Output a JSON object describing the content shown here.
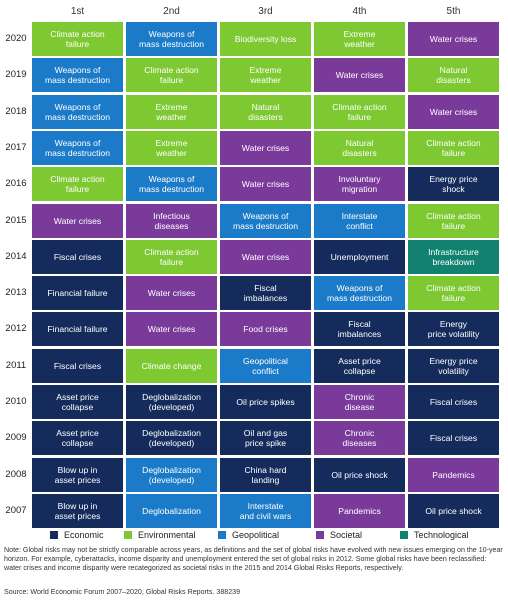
{
  "chart_data": {
    "type": "table",
    "columns": [
      "1st",
      "2nd",
      "3rd",
      "4th",
      "5th"
    ],
    "colors": {
      "Economic": "#152b5c",
      "Environmental": "#7ec832",
      "Geopolitical": "#1c7bc8",
      "Societal": "#7a3a9a",
      "Technological": "#11826f"
    },
    "rows": [
      {
        "year": "2020",
        "cells": [
          {
            "label": "Climate action\nfailure",
            "category": "Environmental"
          },
          {
            "label": "Weapons of\nmass destruction",
            "category": "Geopolitical"
          },
          {
            "label": "Biodiversity loss",
            "category": "Environmental"
          },
          {
            "label": "Extreme\nweather",
            "category": "Environmental"
          },
          {
            "label": "Water crises",
            "category": "Societal"
          }
        ]
      },
      {
        "year": "2019",
        "cells": [
          {
            "label": "Weapons of\nmass destruction",
            "category": "Geopolitical"
          },
          {
            "label": "Climate action\nfailure",
            "category": "Environmental"
          },
          {
            "label": "Extreme\nweather",
            "category": "Environmental"
          },
          {
            "label": "Water crises",
            "category": "Societal"
          },
          {
            "label": "Natural\ndisasters",
            "category": "Environmental"
          }
        ]
      },
      {
        "year": "2018",
        "cells": [
          {
            "label": "Weapons of\nmass destruction",
            "category": "Geopolitical"
          },
          {
            "label": "Extreme\nweather",
            "category": "Environmental"
          },
          {
            "label": "Natural\ndisasters",
            "category": "Environmental"
          },
          {
            "label": "Climate action\nfailure",
            "category": "Environmental"
          },
          {
            "label": "Water crises",
            "category": "Societal"
          }
        ]
      },
      {
        "year": "2017",
        "cells": [
          {
            "label": "Weapons of\nmass destruction",
            "category": "Geopolitical"
          },
          {
            "label": "Extreme\nweather",
            "category": "Environmental"
          },
          {
            "label": "Water crises",
            "category": "Societal"
          },
          {
            "label": "Natural\ndisasters",
            "category": "Environmental"
          },
          {
            "label": "Climate action\nfailure",
            "category": "Environmental"
          }
        ]
      },
      {
        "year": "2016",
        "cells": [
          {
            "label": "Climate action\nfailure",
            "category": "Environmental"
          },
          {
            "label": "Weapons of\nmass destruction",
            "category": "Geopolitical"
          },
          {
            "label": "Water crises",
            "category": "Societal"
          },
          {
            "label": "Involuntary\nmigration",
            "category": "Societal"
          },
          {
            "label": "Energy price\nshock",
            "category": "Economic"
          }
        ]
      },
      {
        "year": "2015",
        "cells": [
          {
            "label": "Water crises",
            "category": "Societal"
          },
          {
            "label": "Infectious\ndiseases",
            "category": "Societal"
          },
          {
            "label": "Weapons of\nmass destruction",
            "category": "Geopolitical"
          },
          {
            "label": "Interstate\nconflict",
            "category": "Geopolitical"
          },
          {
            "label": "Climate action\nfailure",
            "category": "Environmental"
          }
        ]
      },
      {
        "year": "2014",
        "cells": [
          {
            "label": "Fiscal crises",
            "category": "Economic"
          },
          {
            "label": "Climate action\nfailure",
            "category": "Environmental"
          },
          {
            "label": "Water crises",
            "category": "Societal"
          },
          {
            "label": "Unemployment",
            "category": "Economic"
          },
          {
            "label": "Infrastructure\nbreakdown",
            "category": "Technological"
          }
        ]
      },
      {
        "year": "2013",
        "cells": [
          {
            "label": "Financial failure",
            "category": "Economic"
          },
          {
            "label": "Water crises",
            "category": "Societal"
          },
          {
            "label": "Fiscal\nimbalances",
            "category": "Economic"
          },
          {
            "label": "Weapons of\nmass destruction",
            "category": "Geopolitical"
          },
          {
            "label": "Climate action\nfailure",
            "category": "Environmental"
          }
        ]
      },
      {
        "year": "2012",
        "cells": [
          {
            "label": "Financial failure",
            "category": "Economic"
          },
          {
            "label": "Water crises",
            "category": "Societal"
          },
          {
            "label": "Food crises",
            "category": "Societal"
          },
          {
            "label": "Fiscal\nimbalances",
            "category": "Economic"
          },
          {
            "label": "Energy\nprice volatility",
            "category": "Economic"
          }
        ]
      },
      {
        "year": "2011",
        "cells": [
          {
            "label": "Fiscal crises",
            "category": "Economic"
          },
          {
            "label": "Climate change",
            "category": "Environmental"
          },
          {
            "label": "Geopolitical\nconflict",
            "category": "Geopolitical"
          },
          {
            "label": "Asset price\ncollapse",
            "category": "Economic"
          },
          {
            "label": "Energy price\nvolatility",
            "category": "Economic"
          }
        ]
      },
      {
        "year": "2010",
        "cells": [
          {
            "label": "Asset price\ncollapse",
            "category": "Economic"
          },
          {
            "label": "Deglobalization\n(developed)",
            "category": "Economic"
          },
          {
            "label": "Oil price spikes",
            "category": "Economic"
          },
          {
            "label": "Chronic\ndisease",
            "category": "Societal"
          },
          {
            "label": "Fiscal crises",
            "category": "Economic"
          }
        ]
      },
      {
        "year": "2009",
        "cells": [
          {
            "label": "Asset price\ncollapse",
            "category": "Economic"
          },
          {
            "label": "Deglobalization\n(developed)",
            "category": "Economic"
          },
          {
            "label": "Oil and gas\nprice spike",
            "category": "Economic"
          },
          {
            "label": "Chronic\ndiseases",
            "category": "Societal"
          },
          {
            "label": "Fiscal crises",
            "category": "Economic"
          }
        ]
      },
      {
        "year": "2008",
        "cells": [
          {
            "label": "Blow up in\nasset prices",
            "category": "Economic"
          },
          {
            "label": "Deglobalization\n(developed)",
            "category": "Geopolitical"
          },
          {
            "label": "China hard\nlanding",
            "category": "Economic"
          },
          {
            "label": "Oil price shock",
            "category": "Economic"
          },
          {
            "label": "Pandemics",
            "category": "Societal"
          }
        ]
      },
      {
        "year": "2007",
        "cells": [
          {
            "label": "Blow up in\nasset prices",
            "category": "Economic"
          },
          {
            "label": "Deglobalization",
            "category": "Geopolitical"
          },
          {
            "label": "Interstate\nand civil wars",
            "category": "Geopolitical"
          },
          {
            "label": "Pandemics",
            "category": "Societal"
          },
          {
            "label": "Oil price shock",
            "category": "Economic"
          }
        ]
      }
    ],
    "legend": [
      "Economic",
      "Environmental",
      "Geopolitical",
      "Societal",
      "Technological"
    ]
  },
  "note": "Note: Global risks may not be strictly comparable across years, as definitions and the set of global risks have evolved with new issues emerging on the 10-year horizon. For example, cyberattacks, income disparity and unemployment entered the set of global risks in 2012. Some global risks have been reclassified: water crises and income disparity were recategorized as societal risks in the 2015 and 2014 Global Risks Reports, respectively.",
  "source": "Source: World Economic Forum 2007–2020, Global Risks Reports. 388239"
}
